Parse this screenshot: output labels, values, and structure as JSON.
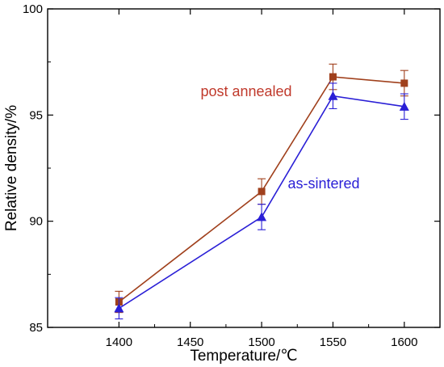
{
  "chart_data": {
    "type": "line",
    "title": "",
    "xlabel": "Temperature/℃",
    "ylabel": "Relative density/%",
    "xlim": [
      1350,
      1625
    ],
    "ylim": [
      85,
      100
    ],
    "x_ticks": [
      1400,
      1450,
      1500,
      1550,
      1600
    ],
    "y_ticks": [
      85,
      90,
      95,
      100
    ],
    "grid": false,
    "legend": "none",
    "x": [
      1400,
      1500,
      1550,
      1600
    ],
    "series": [
      {
        "name": "post annealed",
        "color": "#a0401c",
        "label_color": "#c0392b",
        "marker": "square",
        "values": [
          86.2,
          91.4,
          96.8,
          96.5
        ],
        "error": [
          0.5,
          0.6,
          0.6,
          0.6
        ]
      },
      {
        "name": "as-sintered",
        "color": "#2a1fd6",
        "label_color": "#2a1fd6",
        "marker": "triangle",
        "values": [
          85.9,
          90.2,
          95.9,
          95.4
        ],
        "error": [
          0.5,
          0.6,
          0.6,
          0.6
        ]
      }
    ]
  }
}
